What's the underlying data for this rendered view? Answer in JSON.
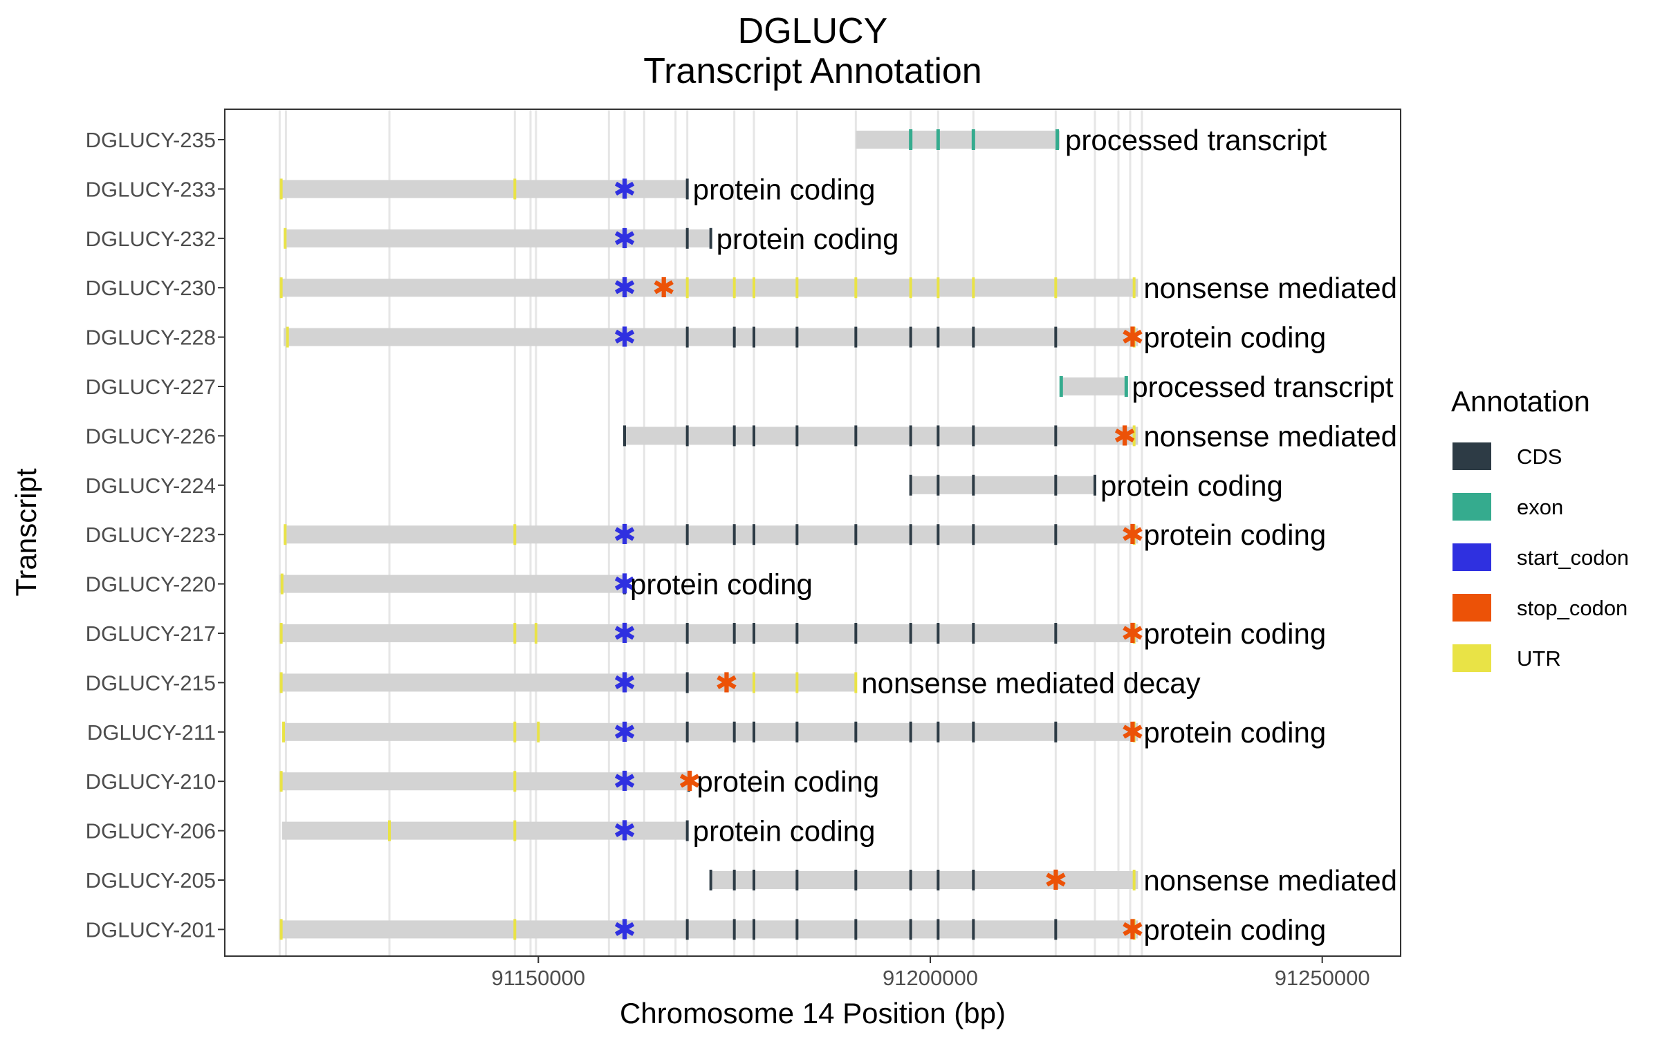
{
  "chart_data": {
    "type": "gene-track",
    "title": "DGLUCY",
    "subtitle": "Transcript Annotation",
    "xlabel": "Chromosome 14 Position (bp)",
    "ylabel": "Transcript",
    "xlim": [
      91110000,
      91260000
    ],
    "x_ticks": [
      91150000,
      91200000,
      91250000
    ],
    "x_tick_labels": [
      "91150000",
      "91200000",
      "91250000"
    ],
    "grid": true,
    "legend_position": "right",
    "legend": {
      "title": "Annotation",
      "items": [
        {
          "key": "CDS",
          "label": "CDS",
          "color": "#2d3b45"
        },
        {
          "key": "exon",
          "label": "exon",
          "color": "#35ab8e"
        },
        {
          "key": "start_codon",
          "label": "start_codon",
          "color": "#2f30e0"
        },
        {
          "key": "stop_codon",
          "label": "stop_codon",
          "color": "#ec5207"
        },
        {
          "key": "UTR",
          "label": "UTR",
          "color": "#e9e346"
        }
      ]
    },
    "intron_color": "#d3d3d3",
    "exon_boundaries": [
      91117000,
      91117800,
      91131000,
      91147000,
      91149000,
      91149700,
      91159000,
      91161000,
      91163500,
      91167500,
      91169000,
      91175000,
      91177500,
      91183000,
      91190500,
      91197500,
      91201000,
      91205500,
      91216000,
      91221000,
      91224000,
      91225500,
      91227000
    ],
    "transcripts": [
      {
        "name": "DGLUCY-235",
        "biotype": "processed transcript",
        "start": 91190500,
        "end": 91216500,
        "features": [
          {
            "type": "exon",
            "pos": 91197500
          },
          {
            "type": "exon",
            "pos": 91201000
          },
          {
            "type": "exon",
            "pos": 91205500
          },
          {
            "type": "exon",
            "pos": 91216200
          }
        ],
        "start_codon": null,
        "stop_codon": null
      },
      {
        "name": "DGLUCY-233",
        "biotype": "protein coding",
        "start": 91117000,
        "end": 91169000,
        "features": [
          {
            "type": "UTR",
            "pos": 91117200
          },
          {
            "type": "UTR",
            "pos": 91147000
          },
          {
            "type": "CDS",
            "pos": 91169000
          }
        ],
        "start_codon": 91161000,
        "stop_codon": null
      },
      {
        "name": "DGLUCY-232",
        "biotype": "protein coding",
        "start": 91117500,
        "end": 91172000,
        "features": [
          {
            "type": "UTR",
            "pos": 91117700
          },
          {
            "type": "CDS",
            "pos": 91169000
          },
          {
            "type": "CDS",
            "pos": 91172000
          }
        ],
        "start_codon": 91161000,
        "stop_codon": null
      },
      {
        "name": "DGLUCY-230",
        "biotype": "nonsense mediated decay",
        "start": 91117000,
        "end": 91226500,
        "features": [
          {
            "type": "UTR",
            "pos": 91117200
          },
          {
            "type": "UTR",
            "pos": 91169000
          },
          {
            "type": "UTR",
            "pos": 91175000
          },
          {
            "type": "UTR",
            "pos": 91177500
          },
          {
            "type": "UTR",
            "pos": 91183000
          },
          {
            "type": "UTR",
            "pos": 91190500
          },
          {
            "type": "UTR",
            "pos": 91197500
          },
          {
            "type": "UTR",
            "pos": 91201000
          },
          {
            "type": "UTR",
            "pos": 91205500
          },
          {
            "type": "UTR",
            "pos": 91216000
          },
          {
            "type": "UTR",
            "pos": 91226000
          }
        ],
        "start_codon": 91161000,
        "stop_codon": 91166000
      },
      {
        "name": "DGLUCY-228",
        "biotype": "protein coding",
        "start": 91117500,
        "end": 91226500,
        "features": [
          {
            "type": "UTR",
            "pos": 91118000
          },
          {
            "type": "CDS",
            "pos": 91169000
          },
          {
            "type": "CDS",
            "pos": 91175000
          },
          {
            "type": "CDS",
            "pos": 91177500
          },
          {
            "type": "CDS",
            "pos": 91183000
          },
          {
            "type": "CDS",
            "pos": 91190500
          },
          {
            "type": "CDS",
            "pos": 91197500
          },
          {
            "type": "CDS",
            "pos": 91201000
          },
          {
            "type": "CDS",
            "pos": 91205500
          },
          {
            "type": "CDS",
            "pos": 91216000
          },
          {
            "type": "UTR",
            "pos": 91226000
          }
        ],
        "start_codon": 91161000,
        "stop_codon": 91225800
      },
      {
        "name": "DGLUCY-227",
        "biotype": "processed transcript",
        "start": 91216500,
        "end": 91225000,
        "features": [
          {
            "type": "exon",
            "pos": 91216700
          },
          {
            "type": "exon",
            "pos": 91225000
          }
        ],
        "start_codon": null,
        "stop_codon": null
      },
      {
        "name": "DGLUCY-226",
        "biotype": "nonsense mediated decay",
        "start": 91161000,
        "end": 91226500,
        "features": [
          {
            "type": "CDS",
            "pos": 91161000
          },
          {
            "type": "CDS",
            "pos": 91169000
          },
          {
            "type": "CDS",
            "pos": 91175000
          },
          {
            "type": "CDS",
            "pos": 91177500
          },
          {
            "type": "CDS",
            "pos": 91183000
          },
          {
            "type": "CDS",
            "pos": 91190500
          },
          {
            "type": "CDS",
            "pos": 91197500
          },
          {
            "type": "CDS",
            "pos": 91201000
          },
          {
            "type": "CDS",
            "pos": 91205500
          },
          {
            "type": "CDS",
            "pos": 91216000
          },
          {
            "type": "UTR",
            "pos": 91226000
          }
        ],
        "start_codon": null,
        "stop_codon": 91224800
      },
      {
        "name": "DGLUCY-224",
        "biotype": "protein coding",
        "start": 91197500,
        "end": 91221000,
        "features": [
          {
            "type": "CDS",
            "pos": 91197500
          },
          {
            "type": "CDS",
            "pos": 91201000
          },
          {
            "type": "CDS",
            "pos": 91205500
          },
          {
            "type": "CDS",
            "pos": 91216000
          },
          {
            "type": "CDS",
            "pos": 91221000
          }
        ],
        "start_codon": null,
        "stop_codon": null
      },
      {
        "name": "DGLUCY-223",
        "biotype": "protein coding",
        "start": 91117500,
        "end": 91226500,
        "features": [
          {
            "type": "UTR",
            "pos": 91117700
          },
          {
            "type": "UTR",
            "pos": 91147000
          },
          {
            "type": "CDS",
            "pos": 91169000
          },
          {
            "type": "CDS",
            "pos": 91175000
          },
          {
            "type": "CDS",
            "pos": 91177500
          },
          {
            "type": "CDS",
            "pos": 91183000
          },
          {
            "type": "CDS",
            "pos": 91190500
          },
          {
            "type": "CDS",
            "pos": 91197500
          },
          {
            "type": "CDS",
            "pos": 91201000
          },
          {
            "type": "CDS",
            "pos": 91205500
          },
          {
            "type": "CDS",
            "pos": 91216000
          },
          {
            "type": "UTR",
            "pos": 91226000
          }
        ],
        "start_codon": 91161000,
        "stop_codon": 91225800
      },
      {
        "name": "DGLUCY-220",
        "biotype": "protein coding",
        "start": 91117000,
        "end": 91161000,
        "features": [
          {
            "type": "UTR",
            "pos": 91117300
          },
          {
            "type": "CDS",
            "pos": 91161000
          }
        ],
        "start_codon": 91161000,
        "stop_codon": null
      },
      {
        "name": "DGLUCY-217",
        "biotype": "protein coding",
        "start": 91117000,
        "end": 91226500,
        "features": [
          {
            "type": "UTR",
            "pos": 91117200
          },
          {
            "type": "UTR",
            "pos": 91147000
          },
          {
            "type": "UTR",
            "pos": 91149700
          },
          {
            "type": "CDS",
            "pos": 91169000
          },
          {
            "type": "CDS",
            "pos": 91175000
          },
          {
            "type": "CDS",
            "pos": 91177500
          },
          {
            "type": "CDS",
            "pos": 91183000
          },
          {
            "type": "CDS",
            "pos": 91190500
          },
          {
            "type": "CDS",
            "pos": 91197500
          },
          {
            "type": "CDS",
            "pos": 91201000
          },
          {
            "type": "CDS",
            "pos": 91205500
          },
          {
            "type": "CDS",
            "pos": 91216000
          },
          {
            "type": "UTR",
            "pos": 91226000
          }
        ],
        "start_codon": 91161000,
        "stop_codon": 91225800
      },
      {
        "name": "DGLUCY-215",
        "biotype": "nonsense mediated decay",
        "start": 91117000,
        "end": 91190500,
        "features": [
          {
            "type": "UTR",
            "pos": 91117200
          },
          {
            "type": "CDS",
            "pos": 91169000
          },
          {
            "type": "UTR",
            "pos": 91177500
          },
          {
            "type": "UTR",
            "pos": 91183000
          },
          {
            "type": "UTR",
            "pos": 91190500
          }
        ],
        "start_codon": 91161000,
        "stop_codon": 91174000
      },
      {
        "name": "DGLUCY-211",
        "biotype": "protein coding",
        "start": 91117300,
        "end": 91226500,
        "features": [
          {
            "type": "UTR",
            "pos": 91117500
          },
          {
            "type": "UTR",
            "pos": 91147000
          },
          {
            "type": "UTR",
            "pos": 91150000
          },
          {
            "type": "CDS",
            "pos": 91169000
          },
          {
            "type": "CDS",
            "pos": 91175000
          },
          {
            "type": "CDS",
            "pos": 91177500
          },
          {
            "type": "CDS",
            "pos": 91183000
          },
          {
            "type": "CDS",
            "pos": 91190500
          },
          {
            "type": "CDS",
            "pos": 91197500
          },
          {
            "type": "CDS",
            "pos": 91201000
          },
          {
            "type": "CDS",
            "pos": 91205500
          },
          {
            "type": "CDS",
            "pos": 91216000
          },
          {
            "type": "UTR",
            "pos": 91226000
          }
        ],
        "start_codon": 91161000,
        "stop_codon": 91225800
      },
      {
        "name": "DGLUCY-210",
        "biotype": "protein coding",
        "start": 91117000,
        "end": 91169500,
        "features": [
          {
            "type": "UTR",
            "pos": 91117200
          },
          {
            "type": "UTR",
            "pos": 91147000
          },
          {
            "type": "CDS",
            "pos": 91169200
          }
        ],
        "start_codon": 91161000,
        "stop_codon": 91169300
      },
      {
        "name": "DGLUCY-206",
        "biotype": "protein coding",
        "start": 91117300,
        "end": 91169000,
        "features": [
          {
            "type": "UTR",
            "pos": 91131000
          },
          {
            "type": "UTR",
            "pos": 91147000
          },
          {
            "type": "CDS",
            "pos": 91169000
          }
        ],
        "start_codon": 91161000,
        "stop_codon": null
      },
      {
        "name": "DGLUCY-205",
        "biotype": "nonsense mediated decay",
        "start": 91172000,
        "end": 91226500,
        "features": [
          {
            "type": "CDS",
            "pos": 91172000
          },
          {
            "type": "CDS",
            "pos": 91175000
          },
          {
            "type": "CDS",
            "pos": 91177500
          },
          {
            "type": "CDS",
            "pos": 91183000
          },
          {
            "type": "CDS",
            "pos": 91190500
          },
          {
            "type": "CDS",
            "pos": 91197500
          },
          {
            "type": "CDS",
            "pos": 91201000
          },
          {
            "type": "CDS",
            "pos": 91205500
          },
          {
            "type": "UTR",
            "pos": 91226000
          }
        ],
        "start_codon": null,
        "stop_codon": 91216000
      },
      {
        "name": "DGLUCY-201",
        "biotype": "protein coding",
        "start": 91117000,
        "end": 91226500,
        "features": [
          {
            "type": "UTR",
            "pos": 91117200
          },
          {
            "type": "UTR",
            "pos": 91147000
          },
          {
            "type": "CDS",
            "pos": 91169000
          },
          {
            "type": "CDS",
            "pos": 91175000
          },
          {
            "type": "CDS",
            "pos": 91177500
          },
          {
            "type": "CDS",
            "pos": 91183000
          },
          {
            "type": "CDS",
            "pos": 91190500
          },
          {
            "type": "CDS",
            "pos": 91197500
          },
          {
            "type": "CDS",
            "pos": 91201000
          },
          {
            "type": "CDS",
            "pos": 91205500
          },
          {
            "type": "CDS",
            "pos": 91216000
          },
          {
            "type": "UTR",
            "pos": 91226000
          }
        ],
        "start_codon": 91161000,
        "stop_codon": 91225800
      }
    ]
  }
}
